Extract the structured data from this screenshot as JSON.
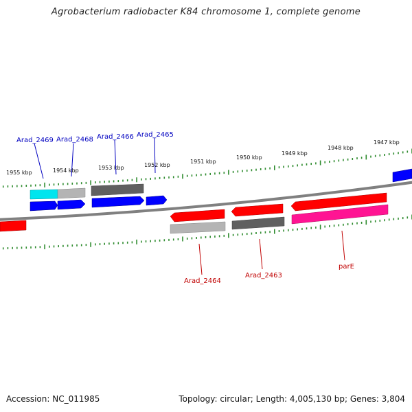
{
  "title": "Agrobacterium radiobacter K84 chromosome 1, complete genome",
  "footer": {
    "accession": "Accession: NC_011985",
    "summary": "Topology: circular; Length: 4,005,130 bp; Genes: 3,804"
  },
  "colors": {
    "backbone": "#808080",
    "tick": "#2e8b2e",
    "label_top": "#0000c0",
    "label_bottom": "#c00000",
    "red": "#ff0000",
    "blue": "#0000ff",
    "cyan": "#00e5ee",
    "gray_light": "#b4b4b4",
    "gray_dark": "#606060",
    "magenta": "#ff1493"
  },
  "scale": {
    "unit": "kbp",
    "top_ticks": [
      "1955 kbp",
      "1954 kbp",
      "1953 kbp",
      "1952 kbp",
      "1951 kbp",
      "1950 kbp",
      "1949 kbp",
      "1948 kbp",
      "1947 kbp"
    ]
  },
  "genes": {
    "labeled": [
      {
        "name": "Arad_2469",
        "strand": "top",
        "color": "cyan"
      },
      {
        "name": "Arad_2468",
        "strand": "top",
        "color": "gray_light"
      },
      {
        "name": "Arad_2466",
        "strand": "top",
        "color": "gray_dark"
      },
      {
        "name": "Arad_2465",
        "strand": "top",
        "color": "blue"
      },
      {
        "name": "Arad_2464",
        "strand": "bottom",
        "color": "gray_light"
      },
      {
        "name": "Arad_2463",
        "strand": "bottom",
        "color": "gray_dark"
      },
      {
        "name": "parE",
        "strand": "bottom",
        "color": "magenta"
      }
    ]
  }
}
